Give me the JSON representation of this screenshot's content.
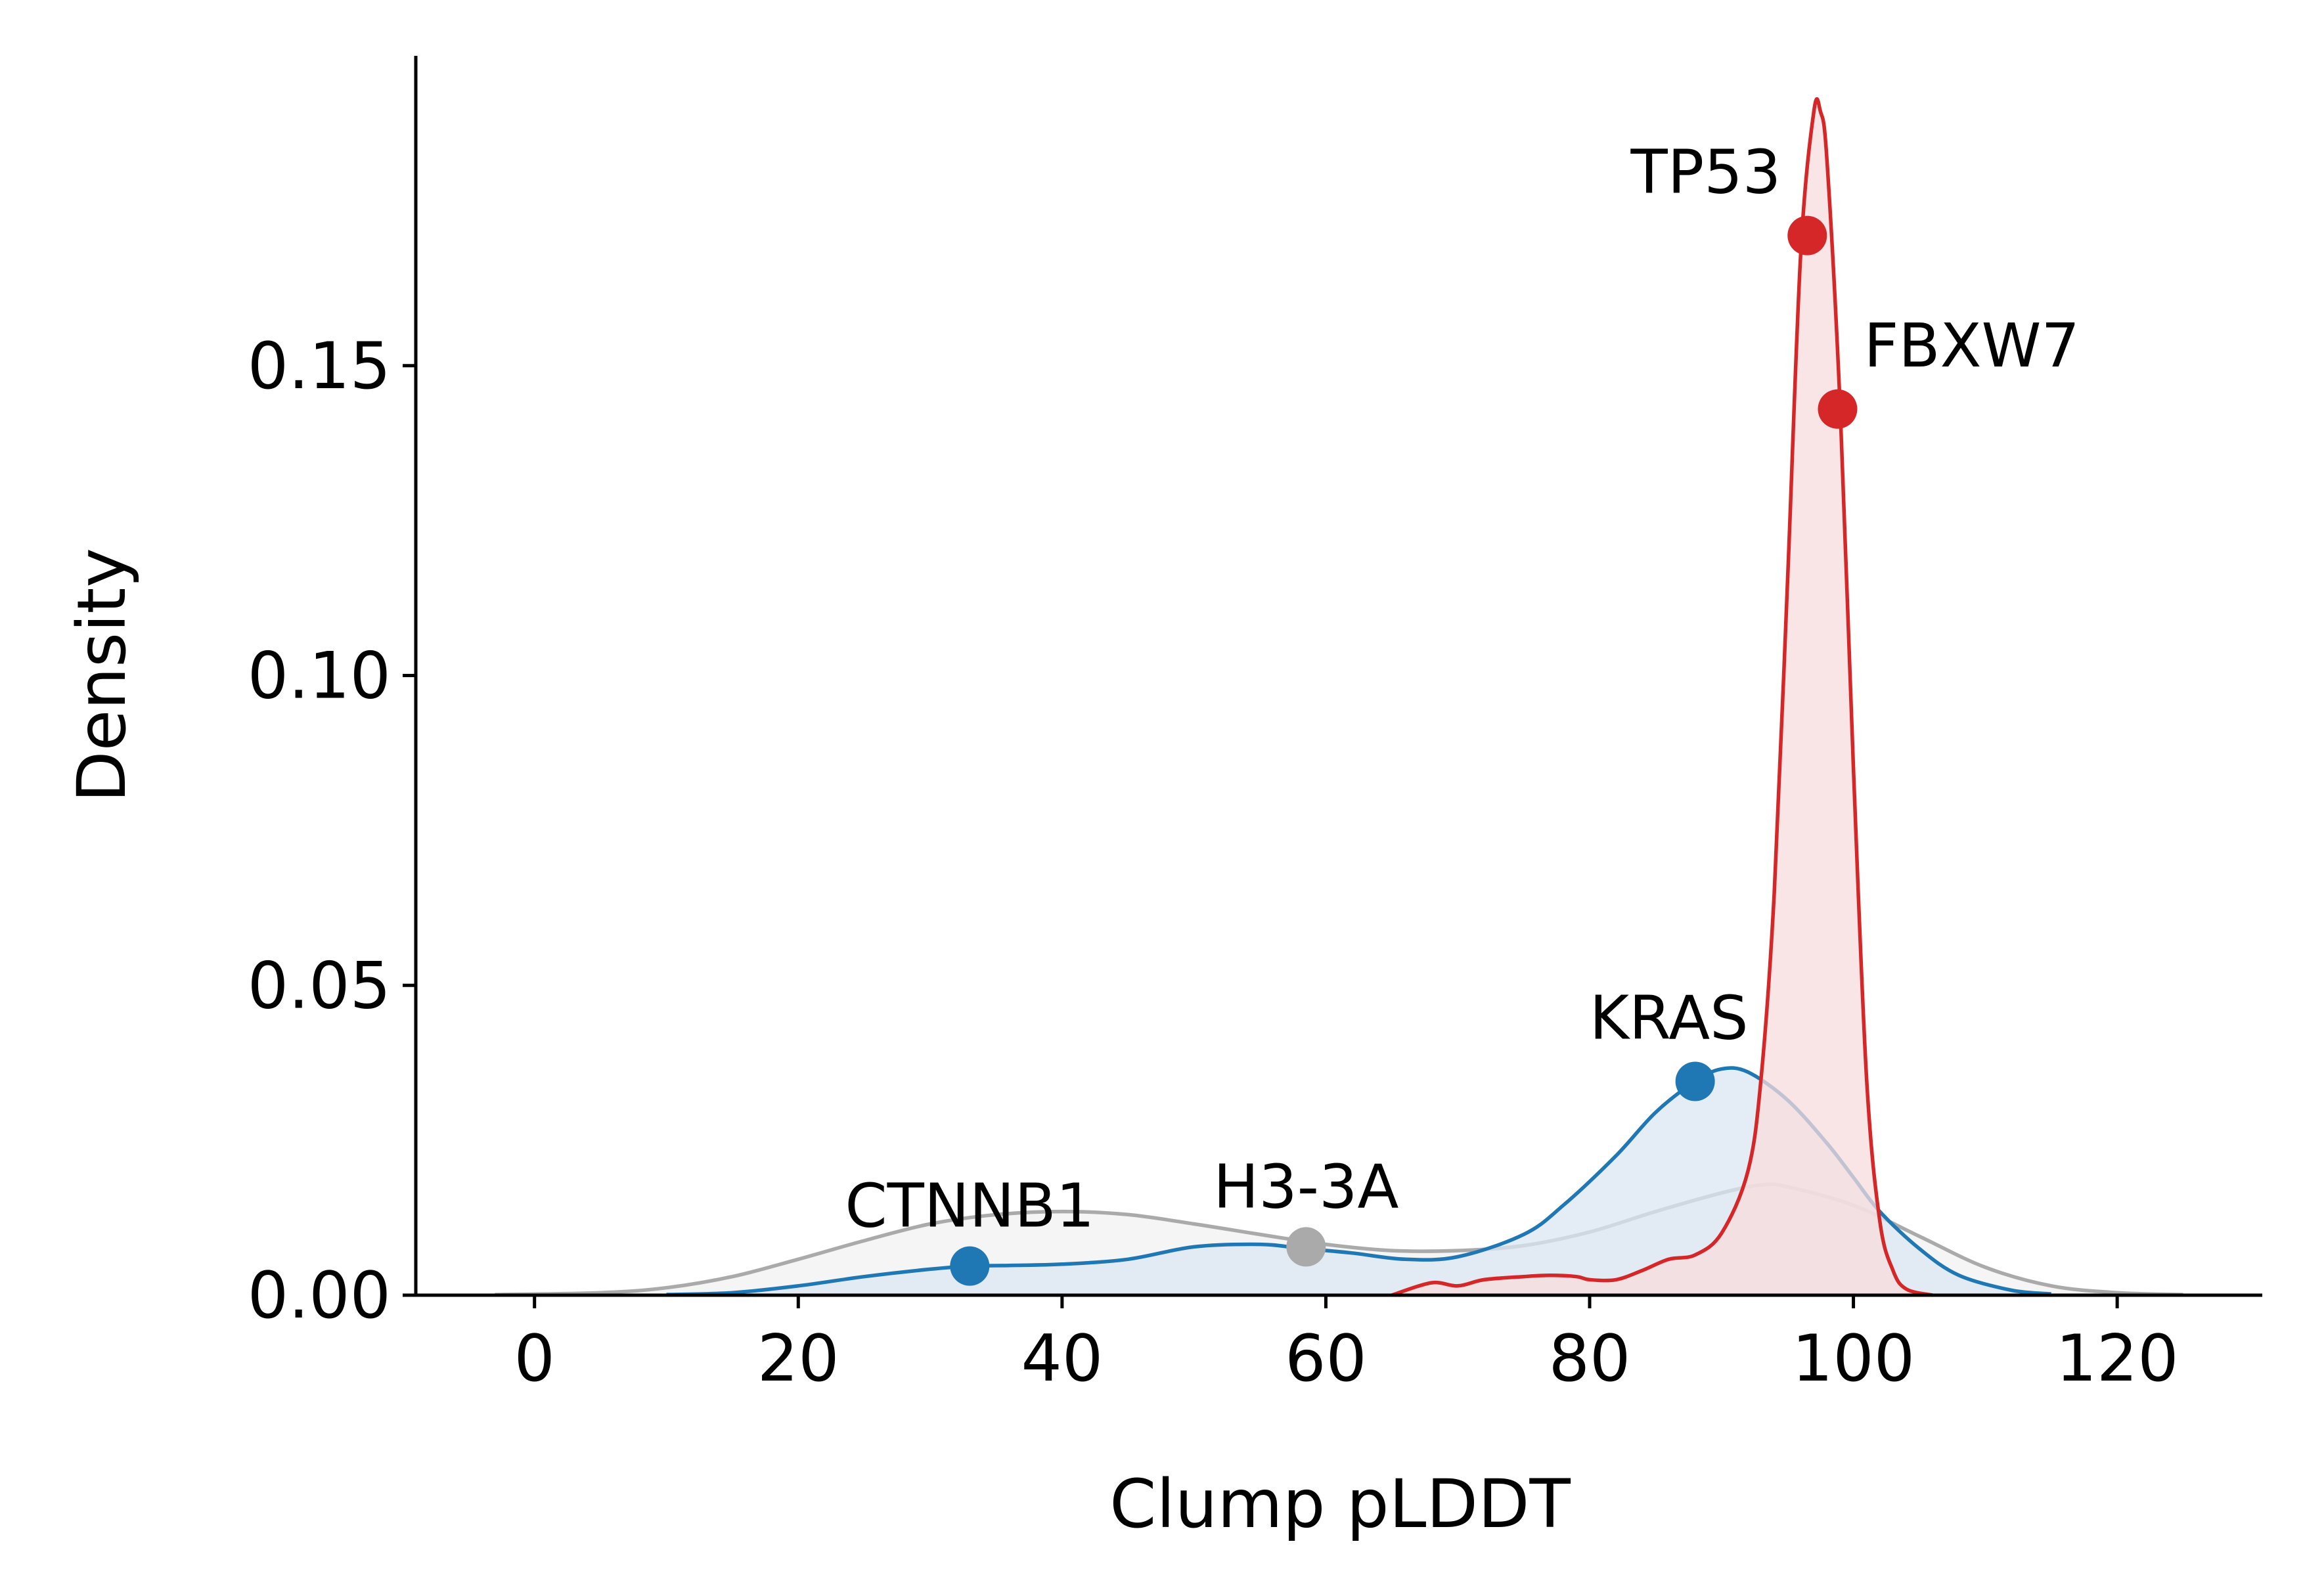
{
  "chart_data": {
    "type": "area",
    "title": "",
    "xlabel": "Clump pLDDT",
    "ylabel": "Density",
    "xlim": [
      -9,
      131
    ],
    "ylim": [
      0,
      0.2
    ],
    "xticks": [
      0,
      20,
      40,
      60,
      80,
      100,
      120
    ],
    "yticks": [
      0.0,
      0.05,
      0.1,
      0.15
    ],
    "xtick_labels": [
      "0",
      "20",
      "40",
      "60",
      "80",
      "100",
      "120"
    ],
    "ytick_labels": [
      "0.00",
      "0.05",
      "0.10",
      "0.15"
    ],
    "grid": false,
    "series": [
      {
        "color": "#aaaaaa",
        "fill": "#f2f2f2",
        "x": [
          -3,
          5,
          10,
          15,
          20,
          25,
          30,
          35,
          40,
          45,
          50,
          55,
          60,
          65,
          70,
          75,
          80,
          85,
          90,
          93,
          95,
          100,
          105,
          110,
          115,
          120,
          125
        ],
        "y": [
          0.0001,
          0.0004,
          0.0012,
          0.003,
          0.0058,
          0.0088,
          0.0115,
          0.013,
          0.0135,
          0.013,
          0.0115,
          0.0098,
          0.0082,
          0.0072,
          0.0072,
          0.008,
          0.0102,
          0.0135,
          0.0165,
          0.0178,
          0.0175,
          0.0145,
          0.0095,
          0.0045,
          0.0015,
          0.0004,
          0.0001
        ]
      },
      {
        "color": "#1f77b4",
        "fill": "#dbe7f2",
        "x": [
          10,
          15,
          20,
          25,
          30,
          33,
          36,
          40,
          45,
          50,
          55,
          58,
          62,
          66,
          70,
          75,
          78,
          82,
          85,
          88,
          90,
          92,
          95,
          98,
          100,
          102,
          105,
          108,
          112,
          115
        ],
        "y": [
          0.0001,
          0.0004,
          0.0015,
          0.003,
          0.0042,
          0.0047,
          0.0048,
          0.005,
          0.0058,
          0.0078,
          0.0082,
          0.0076,
          0.0068,
          0.0058,
          0.0062,
          0.0098,
          0.0145,
          0.0225,
          0.0295,
          0.0345,
          0.0365,
          0.036,
          0.0315,
          0.0245,
          0.019,
          0.0135,
          0.0075,
          0.0032,
          0.0008,
          0.0002
        ]
      },
      {
        "color": "#d62728",
        "fill": "#f8dcdd",
        "x": [
          65,
          68,
          70,
          72,
          75,
          77,
          79,
          80,
          82,
          84,
          86,
          88,
          90,
          92,
          93,
          94,
          95,
          96,
          97,
          97.5,
          98,
          99,
          100,
          101,
          102,
          103,
          104,
          106
        ],
        "y": [
          0,
          0.002,
          0.0015,
          0.0025,
          0.003,
          0.0032,
          0.003,
          0.0025,
          0.0025,
          0.004,
          0.0058,
          0.0065,
          0.01,
          0.02,
          0.035,
          0.065,
          0.115,
          0.168,
          0.191,
          0.191,
          0.183,
          0.143,
          0.085,
          0.035,
          0.012,
          0.004,
          0.001,
          0
        ]
      }
    ],
    "points": [
      {
        "label": "CTNNB1",
        "x": 33,
        "y": 0.0047,
        "color": "#1f77b4"
      },
      {
        "label": "H3-3A",
        "x": 58.5,
        "y": 0.0078,
        "color": "#aaaaaa"
      },
      {
        "label": "KRAS",
        "x": 88,
        "y": 0.0345,
        "color": "#1f77b4"
      },
      {
        "label": "TP53",
        "x": 96.5,
        "y": 0.171,
        "color": "#d62728"
      },
      {
        "label": "FBXW7",
        "x": 98.8,
        "y": 0.143,
        "color": "#d62728"
      }
    ]
  }
}
